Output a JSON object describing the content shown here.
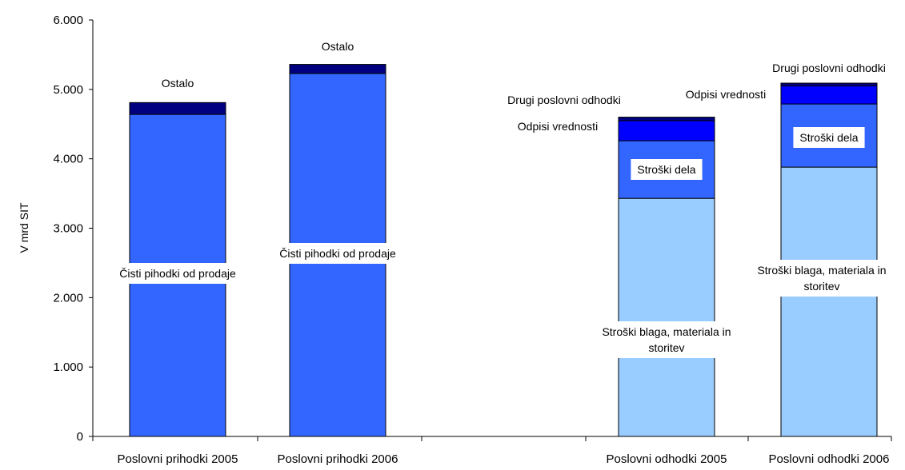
{
  "chart_data": {
    "type": "bar",
    "stacked": true,
    "ylabel": "V mrd SIT",
    "ylim": [
      0,
      6000
    ],
    "y_ticks": [
      {
        "value": 0,
        "label": "0"
      },
      {
        "value": 1000,
        "label": "1.000"
      },
      {
        "value": 2000,
        "label": "2.000"
      },
      {
        "value": 3000,
        "label": "3.000"
      },
      {
        "value": 4000,
        "label": "4.000"
      },
      {
        "value": 5000,
        "label": "5.000"
      },
      {
        "value": 6000,
        "label": "6.000"
      }
    ],
    "grid": false,
    "legend": "none",
    "categories": [
      "Poslovni prihodki 2005",
      "Poslovni prihodki 2006",
      "Poslovni odhodki 2005",
      "Poslovni odhodki 2006"
    ],
    "bars": [
      {
        "category": "Poslovni prihodki 2005",
        "segments": [
          {
            "label": "Čisti pihodki od prodaje",
            "value": 4640,
            "color": "#3366ff"
          },
          {
            "label": "Ostalo",
            "value": 170,
            "color": "#000080"
          }
        ]
      },
      {
        "category": "Poslovni prihodki 2006",
        "segments": [
          {
            "label": "Čisti pihodki od prodaje",
            "value": 5230,
            "color": "#3366ff"
          },
          {
            "label": "Ostalo",
            "value": 130,
            "color": "#000080"
          }
        ]
      },
      {
        "category": "Poslovni odhodki 2005",
        "segments": [
          {
            "label": "Stroški blaga, materiala in storitev",
            "value": 3430,
            "color": "#99ccff"
          },
          {
            "label": "Stroški dela",
            "value": 830,
            "color": "#3366ff"
          },
          {
            "label": "Odpisi vrednosti",
            "value": 290,
            "color": "#0000ff"
          },
          {
            "label": "Drugi poslovni odhodki",
            "value": 50,
            "color": "#000080"
          }
        ]
      },
      {
        "category": "Poslovni odhodki 2006",
        "segments": [
          {
            "label": "Stroški blaga, materiala in storitev",
            "value": 3880,
            "color": "#99ccff"
          },
          {
            "label": "Stroški dela",
            "value": 910,
            "color": "#3366ff"
          },
          {
            "label": "Odpisi vrednosti",
            "value": 260,
            "color": "#0000ff"
          },
          {
            "label": "Drugi poslovni odhodki",
            "value": 40,
            "color": "#000080"
          }
        ]
      }
    ]
  }
}
